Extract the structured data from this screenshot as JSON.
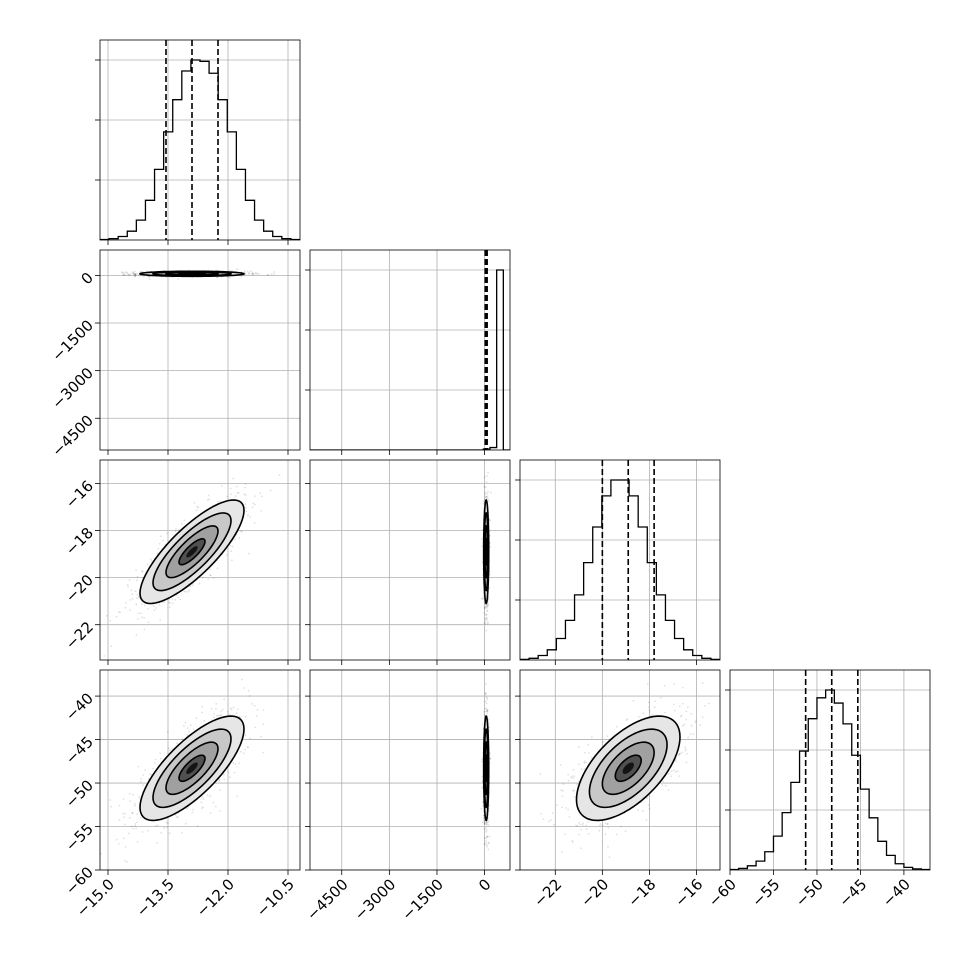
{
  "chart_data": {
    "type": "corner",
    "parameters": [
      {
        "range": [
          -15.2,
          -10.2
        ],
        "ticks": [
          -15.0,
          -13.5,
          -12.0,
          -10.5
        ],
        "tick_labels": [
          "−15.0",
          "−13.5",
          "−12.0",
          "−10.5"
        ],
        "quantiles": [
          -13.55,
          -12.9,
          -12.25
        ],
        "mean": -12.9,
        "sd": 0.65
      },
      {
        "range": [
          -5500,
          800
        ],
        "ticks": [
          -4500,
          -3000,
          -1500,
          0
        ],
        "tick_labels": [
          "−4500",
          "−3000",
          "−1500",
          "0"
        ],
        "quantiles": [
          20,
          50,
          80
        ],
        "mean": 50,
        "sd": 40
      },
      {
        "range": [
          -23.5,
          -15.0
        ],
        "ticks": [
          -22,
          -20,
          -18,
          -16
        ],
        "tick_labels": [
          "−22",
          "−20",
          "−18",
          "−16"
        ],
        "quantiles": [
          -20.0,
          -18.9,
          -17.8
        ],
        "mean": -18.9,
        "sd": 1.1
      },
      {
        "range": [
          -60,
          -37
        ],
        "ticks": [
          -60,
          -55,
          -50,
          -45,
          -40
        ],
        "tick_labels": [
          "−60",
          "−55",
          "−50",
          "−45",
          "−40"
        ],
        "quantiles": [
          -51.3,
          -48.3,
          -45.3
        ],
        "mean": -48.3,
        "sd": 3.0
      }
    ],
    "histograms": [
      {
        "edges_range": [
          -15.2,
          -10.2
        ],
        "counts": [
          1,
          3,
          8,
          20,
          45,
          90,
          160,
          245,
          318,
          383,
          408,
          405,
          378,
          318,
          245,
          160,
          90,
          45,
          20,
          8,
          3,
          1
        ]
      },
      {
        "edges_range": [
          -5500,
          800
        ],
        "counts": [
          0,
          0,
          0,
          0,
          0,
          0,
          0,
          0,
          0,
          0,
          0,
          0,
          0,
          0,
          0,
          0,
          0,
          0,
          0,
          0,
          0,
          0,
          0,
          0,
          0,
          0,
          2,
          5,
          370,
          0
        ]
      },
      {
        "edges_range": [
          -23.5,
          -15.0
        ],
        "counts": [
          1,
          3,
          8,
          18,
          38,
          70,
          115,
          172,
          235,
          290,
          318,
          318,
          290,
          235,
          172,
          115,
          70,
          38,
          18,
          8,
          3,
          1
        ]
      },
      {
        "edges_range": [
          -60,
          -37
        ],
        "counts": [
          1,
          3,
          8,
          17,
          35,
          65,
          110,
          168,
          228,
          290,
          330,
          345,
          320,
          280,
          220,
          155,
          100,
          55,
          28,
          12,
          5,
          2,
          1
        ]
      }
    ],
    "correlations": [
      [
        0,
        1,
        0.0
      ],
      [
        0,
        2,
        0.8
      ],
      [
        0,
        3,
        0.75
      ],
      [
        1,
        2,
        0.0
      ],
      [
        1,
        3,
        0.0
      ],
      [
        2,
        3,
        0.6
      ]
    ],
    "grid": true
  }
}
